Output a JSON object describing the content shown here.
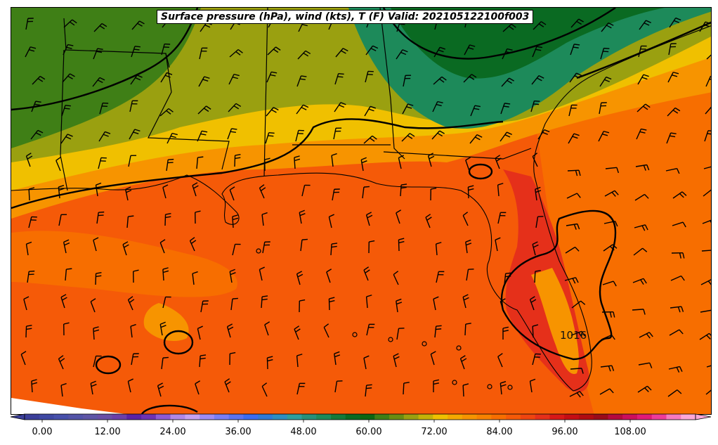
{
  "title": "Surface pressure (hPa), wind (kts), T (F) Valid: 202105122100f003",
  "contour_label": "1016",
  "colorbar": {
    "min": -6,
    "max": 120,
    "step": 3,
    "ticks": [
      "0.00",
      "12.00",
      "24.00",
      "36.00",
      "48.00",
      "60.00",
      "72.00",
      "84.00",
      "96.00",
      "108.00"
    ],
    "tick_values": [
      0,
      12,
      24,
      36,
      48,
      60,
      72,
      84,
      96,
      108
    ],
    "colors": [
      "#3b3f9a",
      "#3f48a3",
      "#4750ab",
      "#5354a8",
      "#5f56a6",
      "#6a4fa6",
      "#6c3fa8",
      "#5b22a4",
      "#6e32b3",
      "#8e5ad3",
      "#b088e6",
      "#c7a2f0",
      "#9e8cf5",
      "#7a7ef5",
      "#5b73f0",
      "#3b6cf0",
      "#2f7ad5",
      "#2d8ec0",
      "#2e9e9c",
      "#269079",
      "#1d8a5a",
      "#137a3a",
      "#0a6a22",
      "#0d6612",
      "#3f7f16",
      "#6a8c12",
      "#9aa010",
      "#c4b208",
      "#f0c000",
      "#f5a800",
      "#f79400",
      "#f88200",
      "#f76e00",
      "#f55a08",
      "#ef4510",
      "#e5301a",
      "#d81818",
      "#c50d14",
      "#b00c12",
      "#9a0c1a",
      "#b40a3e",
      "#cc0f5c",
      "#e01a78",
      "#ee3c9a",
      "#f77ac0",
      "#fca8d8"
    ]
  },
  "legend_colors": {
    "land_north": "#3f7f16",
    "land_mid": "#9aa010",
    "land_south": "#f0c000",
    "gulf": "#f55a08",
    "atlantic": "#f76e00",
    "florida_hot": "#d81818",
    "appalachia_green": "#0a6a22"
  }
}
